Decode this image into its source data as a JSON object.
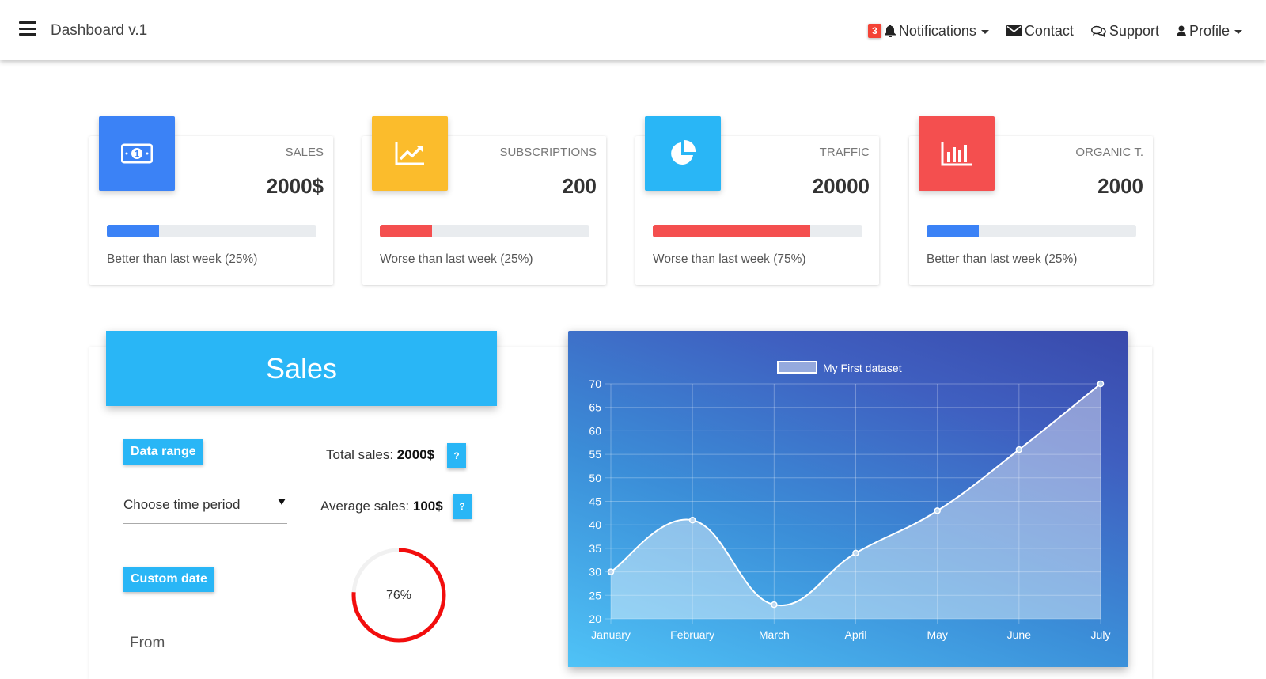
{
  "navbar": {
    "brand": "Dashboard v.1",
    "notifications": {
      "count": "3",
      "label": "Notifications"
    },
    "contact": "Contact",
    "support": "Support",
    "profile": "Profile"
  },
  "cards": [
    {
      "label": "SALES",
      "value": "2000$",
      "progress": 0.25,
      "bar_color": "#3b82f6",
      "icon": "money-icon",
      "icon_bg": "#3b82f6",
      "footer": "Better than last week (25%)"
    },
    {
      "label": "SUBSCRIPTIONS",
      "value": "200",
      "progress": 0.25,
      "bar_color": "#f44f4f",
      "icon": "line-chart-icon",
      "icon_bg": "#fbbc2c",
      "footer": "Worse than last week (25%)"
    },
    {
      "label": "TRAFFIC",
      "value": "20000",
      "progress": 0.75,
      "bar_color": "#f44f4f",
      "icon": "pie-chart-icon",
      "icon_bg": "#29b6f6",
      "footer": "Worse than last week (75%)"
    },
    {
      "label": "ORGANIC T.",
      "value": "2000",
      "progress": 0.25,
      "bar_color": "#3b82f6",
      "icon": "bar-chart-icon",
      "icon_bg": "#f44f4f",
      "footer": "Better than last week (25%)"
    }
  ],
  "sales": {
    "title": "Sales",
    "data_range_label": "Data range",
    "period_select": "Choose time period",
    "custom_date_label": "Custom date",
    "from_label": "From",
    "total_label": "Total sales:",
    "total_value": "2000$",
    "average_label": "Average sales:",
    "average_value": "100$",
    "help_label": "?",
    "donut_percent": 76,
    "donut_text": "76%"
  },
  "chart_data": {
    "type": "line",
    "x": [
      "January",
      "February",
      "March",
      "April",
      "May",
      "June",
      "July"
    ],
    "series": [
      {
        "name": "My First dataset",
        "values": [
          30,
          41,
          23,
          34,
          43,
          56,
          70
        ]
      }
    ],
    "ylim": [
      20,
      70
    ],
    "yticks": [
      20,
      25,
      30,
      35,
      40,
      45,
      50,
      55,
      60,
      65,
      70
    ],
    "grid": true,
    "legend": "top-center",
    "area": true
  }
}
